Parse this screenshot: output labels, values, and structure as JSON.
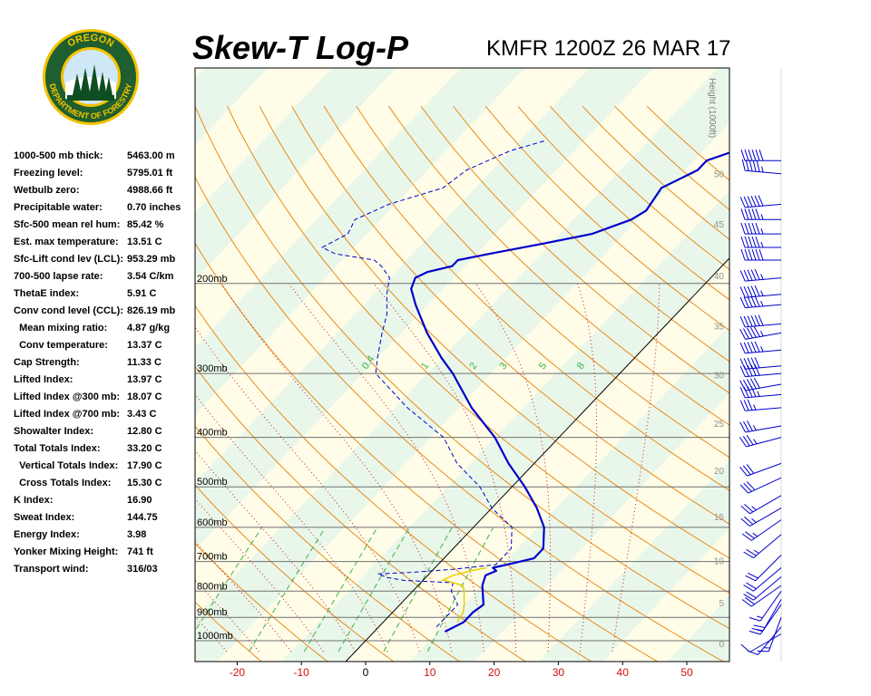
{
  "header": {
    "title": "Skew-T Log-P",
    "station": "KMFR 1200Z 26 MAR 17"
  },
  "logo": {
    "top_text": "OREGON",
    "bottom_text": "DEPARTMENT OF FORESTRY",
    "colors": {
      "ring": "#1f5e2e",
      "gold": "#f2c200",
      "tree": "#0f4d22",
      "sky": "#cfe8f7"
    }
  },
  "stats": [
    {
      "label": "1000-500 mb thick:",
      "value": "5463.00 m"
    },
    {
      "label": "Freezing level:",
      "value": "5795.01 ft"
    },
    {
      "label": "Wetbulb zero:",
      "value": "4988.66 ft"
    },
    {
      "label": "Precipitable water:",
      "value": "0.70 inches"
    },
    {
      "label": "Sfc-500 mean rel hum:",
      "value": "85.42 %"
    },
    {
      "label": "Est. max temperature:",
      "value": "13.51 C"
    },
    {
      "label": "Sfc-Lift cond lev (LCL):",
      "value": "953.29 mb"
    },
    {
      "label": "700-500 lapse rate:",
      "value": "3.54 C/km"
    },
    {
      "label": "ThetaE index:",
      "value": "5.91 C"
    },
    {
      "label": "Conv cond level (CCL):",
      "value": "826.19 mb"
    },
    {
      "label": "  Mean mixing ratio:",
      "value": "4.87 g/kg"
    },
    {
      "label": "  Conv temperature:",
      "value": "13.37 C"
    },
    {
      "label": "Cap Strength:",
      "value": "11.33 C"
    },
    {
      "label": "Lifted Index:",
      "value": "13.97 C"
    },
    {
      "label": "Lifted Index @300 mb:",
      "value": "18.07 C"
    },
    {
      "label": "Lifted Index @700 mb:",
      "value": "3.43 C"
    },
    {
      "label": "Showalter Index:",
      "value": "12.80 C"
    },
    {
      "label": "Total Totals Index:",
      "value": "33.20 C"
    },
    {
      "label": "  Vertical Totals Index:",
      "value": "17.90 C"
    },
    {
      "label": "  Cross Totals Index:",
      "value": "15.30 C"
    },
    {
      "label": "K Index:",
      "value": "16.90"
    },
    {
      "label": "Sweat Index:",
      "value": "144.75"
    },
    {
      "label": "Energy Index:",
      "value": "3.98"
    },
    {
      "label": "Yonker Mixing Height:",
      "value": "741 ft"
    },
    {
      "label": "Transport wind:",
      "value": "316/03"
    }
  ],
  "chart_data": {
    "type": "line",
    "x_ticks": [
      -20,
      -10,
      0,
      10,
      20,
      30,
      40,
      50
    ],
    "xlim": [
      -27,
      54
    ],
    "pressure_levels": [
      {
        "p": 200,
        "label": "200mb"
      },
      {
        "p": 300,
        "label": "300mb"
      },
      {
        "p": 400,
        "label": "400mb"
      },
      {
        "p": 500,
        "label": "500mb"
      },
      {
        "p": 600,
        "label": "600mb"
      },
      {
        "p": 700,
        "label": "700mb"
      },
      {
        "p": 800,
        "label": "800mb"
      },
      {
        "p": 900,
        "label": "900mb"
      },
      {
        "p": 1000,
        "label": "1000mb"
      }
    ],
    "height_axis": {
      "label": "Height (1000ft)",
      "ticks": [
        {
          "label": "50",
          "p": 122
        },
        {
          "label": "45",
          "p": 153
        },
        {
          "label": "40",
          "p": 193
        },
        {
          "label": "35",
          "p": 242
        },
        {
          "label": "30",
          "p": 302
        },
        {
          "label": "25",
          "p": 375
        },
        {
          "label": "20",
          "p": 464
        },
        {
          "label": "15",
          "p": 572
        },
        {
          "label": "10",
          "p": 697
        },
        {
          "label": "5",
          "p": 843
        },
        {
          "label": "0",
          "p": 1013
        }
      ]
    },
    "mixing_ratio_labels": [
      "0.4",
      "1",
      "2",
      "3",
      "5",
      "8"
    ],
    "mixing_ratio_values": [
      0.4,
      1,
      2,
      3,
      5,
      8
    ],
    "series": [
      {
        "points": [
          {
            "p": 960,
            "t": 11
          },
          {
            "p": 920,
            "t": 12.5
          },
          {
            "p": 880,
            "t": 12.5
          },
          {
            "p": 850,
            "t": 13
          },
          {
            "p": 780,
            "t": 10
          },
          {
            "p": 745,
            "t": 9
          },
          {
            "p": 730,
            "t": 10
          },
          {
            "p": 720,
            "t": 9
          },
          {
            "p": 705,
            "t": 11.5
          },
          {
            "p": 690,
            "t": 14
          },
          {
            "p": 660,
            "t": 14
          },
          {
            "p": 600,
            "t": 11
          },
          {
            "p": 550,
            "t": 7
          },
          {
            "p": 500,
            "t": 2
          },
          {
            "p": 450,
            "t": -4
          },
          {
            "p": 400,
            "t": -10
          },
          {
            "p": 350,
            "t": -18
          },
          {
            "p": 300,
            "t": -26
          },
          {
            "p": 280,
            "t": -30
          },
          {
            "p": 250,
            "t": -36
          },
          {
            "p": 220,
            "t": -42
          },
          {
            "p": 205,
            "t": -45
          },
          {
            "p": 195,
            "t": -46
          },
          {
            "p": 190,
            "t": -45
          },
          {
            "p": 185,
            "t": -42
          },
          {
            "p": 180,
            "t": -42
          },
          {
            "p": 175,
            "t": -38
          },
          {
            "p": 167,
            "t": -31
          },
          {
            "p": 160,
            "t": -25
          },
          {
            "p": 150,
            "t": -21
          },
          {
            "p": 144,
            "t": -20
          },
          {
            "p": 130,
            "t": -21
          },
          {
            "p": 120,
            "t": -18
          },
          {
            "p": 115,
            "t": -18
          },
          {
            "p": 110,
            "t": -15
          },
          {
            "p": 102,
            "t": -13
          }
        ]
      },
      {
        "points": [
          {
            "p": 940,
            "t": 9
          },
          {
            "p": 880,
            "t": 9
          },
          {
            "p": 850,
            "t": 9
          },
          {
            "p": 800,
            "t": 6
          },
          {
            "p": 770,
            "t": 5
          },
          {
            "p": 762,
            "t": -3
          },
          {
            "p": 752,
            "t": -6
          },
          {
            "p": 740,
            "t": -8
          },
          {
            "p": 735,
            "t": -3
          },
          {
            "p": 725,
            "t": 3
          },
          {
            "p": 710,
            "t": 9
          },
          {
            "p": 690,
            "t": 9
          },
          {
            "p": 660,
            "t": 9
          },
          {
            "p": 600,
            "t": 6
          },
          {
            "p": 550,
            "t": 0
          },
          {
            "p": 500,
            "t": -5
          },
          {
            "p": 450,
            "t": -12
          },
          {
            "p": 400,
            "t": -18
          },
          {
            "p": 350,
            "t": -28
          },
          {
            "p": 300,
            "t": -38
          },
          {
            "p": 280,
            "t": -40
          },
          {
            "p": 250,
            "t": -43
          },
          {
            "p": 230,
            "t": -45
          },
          {
            "p": 210,
            "t": -48
          },
          {
            "p": 195,
            "t": -50
          },
          {
            "p": 185,
            "t": -53
          },
          {
            "p": 180,
            "t": -55
          },
          {
            "p": 175,
            "t": -62
          },
          {
            "p": 170,
            "t": -65
          },
          {
            "p": 160,
            "t": -63
          },
          {
            "p": 150,
            "t": -64
          },
          {
            "p": 140,
            "t": -61
          },
          {
            "p": 130,
            "t": -55
          },
          {
            "p": 120,
            "t": -54
          },
          {
            "p": 110,
            "t": -50
          },
          {
            "p": 105,
            "t": -46
          }
        ]
      },
      {
        "points": [
          {
            "p": 920,
            "t": 11.5
          },
          {
            "p": 880,
            "t": 11
          },
          {
            "p": 850,
            "t": 10
          },
          {
            "p": 800,
            "t": 8
          },
          {
            "p": 780,
            "t": 7
          },
          {
            "p": 760,
            "t": 3
          },
          {
            "p": 745,
            "t": 4
          },
          {
            "p": 730,
            "t": 6
          },
          {
            "p": 720,
            "t": 8
          }
        ]
      }
    ],
    "wind_barbs": [
      {
        "p": 115,
        "dir": 270,
        "spd": 60
      },
      {
        "p": 122,
        "dir": 275,
        "spd": 55
      },
      {
        "p": 140,
        "dir": 265,
        "spd": 60
      },
      {
        "p": 150,
        "dir": 270,
        "spd": 55
      },
      {
        "p": 160,
        "dir": 270,
        "spd": 55
      },
      {
        "p": 170,
        "dir": 270,
        "spd": 55
      },
      {
        "p": 180,
        "dir": 270,
        "spd": 60
      },
      {
        "p": 195,
        "dir": 265,
        "spd": 55
      },
      {
        "p": 210,
        "dir": 265,
        "spd": 55
      },
      {
        "p": 220,
        "dir": 265,
        "spd": 55
      },
      {
        "p": 240,
        "dir": 265,
        "spd": 60
      },
      {
        "p": 250,
        "dir": 260,
        "spd": 55
      },
      {
        "p": 270,
        "dir": 265,
        "spd": 55
      },
      {
        "p": 290,
        "dir": 265,
        "spd": 50
      },
      {
        "p": 300,
        "dir": 265,
        "spd": 50
      },
      {
        "p": 315,
        "dir": 260,
        "spd": 50
      },
      {
        "p": 330,
        "dir": 265,
        "spd": 45
      },
      {
        "p": 350,
        "dir": 265,
        "spd": 35
      },
      {
        "p": 380,
        "dir": 260,
        "spd": 35
      },
      {
        "p": 400,
        "dir": 255,
        "spd": 35
      },
      {
        "p": 450,
        "dir": 250,
        "spd": 30
      },
      {
        "p": 480,
        "dir": 245,
        "spd": 30
      },
      {
        "p": 520,
        "dir": 240,
        "spd": 25
      },
      {
        "p": 550,
        "dir": 240,
        "spd": 25
      },
      {
        "p": 580,
        "dir": 235,
        "spd": 25
      },
      {
        "p": 620,
        "dir": 230,
        "spd": 25
      },
      {
        "p": 680,
        "dir": 225,
        "spd": 20
      },
      {
        "p": 720,
        "dir": 230,
        "spd": 20
      },
      {
        "p": 750,
        "dir": 230,
        "spd": 20
      },
      {
        "p": 780,
        "dir": 235,
        "spd": 20
      },
      {
        "p": 800,
        "dir": 215,
        "spd": 15
      },
      {
        "p": 830,
        "dir": 210,
        "spd": 20
      },
      {
        "p": 850,
        "dir": 215,
        "spd": 15
      },
      {
        "p": 900,
        "dir": 200,
        "spd": 15
      },
      {
        "p": 940,
        "dir": 220,
        "spd": 10
      },
      {
        "p": 970,
        "dir": 240,
        "spd": 10
      }
    ]
  }
}
